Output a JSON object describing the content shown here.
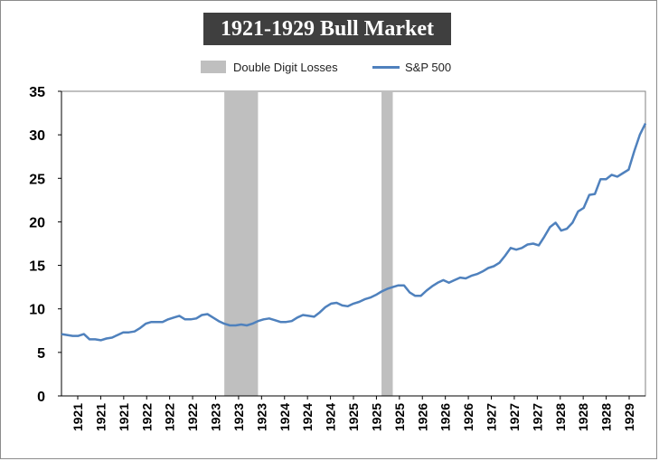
{
  "colors": {
    "line": "#4f81bd",
    "shade": "#bfbfbf",
    "title_bg": "#3f3f3f",
    "title_fg": "#ffffff",
    "axis": "#000000"
  },
  "chart_data": {
    "type": "line",
    "title": "1921-1929 Bull Market",
    "xlabel": "",
    "ylabel": "",
    "ylim": [
      0,
      35
    ],
    "y_ticks": [
      0,
      5,
      10,
      15,
      20,
      25,
      30,
      35
    ],
    "grid": false,
    "legend_position": "top-center",
    "legend": [
      {
        "name": "Double Digit Losses",
        "kind": "shaded-region"
      },
      {
        "name": "S&P 500",
        "kind": "line"
      }
    ],
    "x_tick_labels": [
      "1921",
      "1921",
      "1921",
      "1922",
      "1922",
      "1922",
      "1923",
      "1923",
      "1923",
      "1924",
      "1924",
      "1924",
      "1925",
      "1925",
      "1925",
      "1926",
      "1926",
      "1926",
      "1927",
      "1927",
      "1927",
      "1928",
      "1928",
      "1928",
      "1929"
    ],
    "shaded_periods": [
      {
        "label": "Double Digit Losses",
        "start_index": 29,
        "end_index": 35
      },
      {
        "label": "Double Digit Losses",
        "start_index": 57,
        "end_index": 59
      }
    ],
    "series": [
      {
        "name": "S&P 500",
        "values": [
          7.1,
          7.0,
          6.9,
          6.9,
          7.1,
          6.5,
          6.5,
          6.4,
          6.6,
          6.7,
          7.0,
          7.3,
          7.3,
          7.4,
          7.8,
          8.3,
          8.5,
          8.5,
          8.5,
          8.8,
          9.0,
          9.2,
          8.8,
          8.8,
          8.9,
          9.3,
          9.4,
          9.0,
          8.6,
          8.3,
          8.1,
          8.1,
          8.2,
          8.1,
          8.3,
          8.6,
          8.8,
          8.9,
          8.7,
          8.5,
          8.5,
          8.6,
          9.0,
          9.3,
          9.2,
          9.1,
          9.6,
          10.2,
          10.6,
          10.7,
          10.4,
          10.3,
          10.6,
          10.8,
          11.1,
          11.3,
          11.6,
          12.0,
          12.3,
          12.5,
          12.7,
          12.7,
          11.9,
          11.5,
          11.5,
          12.1,
          12.6,
          13.0,
          13.3,
          13.0,
          13.3,
          13.6,
          13.5,
          13.8,
          14.0,
          14.3,
          14.7,
          14.9,
          15.3,
          16.1,
          17.0,
          16.8,
          17.0,
          17.4,
          17.5,
          17.3,
          18.3,
          19.4,
          19.9,
          19.0,
          19.2,
          19.9,
          21.2,
          21.6,
          23.1,
          23.2,
          24.9,
          24.9,
          25.4,
          25.2,
          25.6,
          26.0,
          28.1,
          30.0,
          31.3
        ]
      }
    ]
  }
}
